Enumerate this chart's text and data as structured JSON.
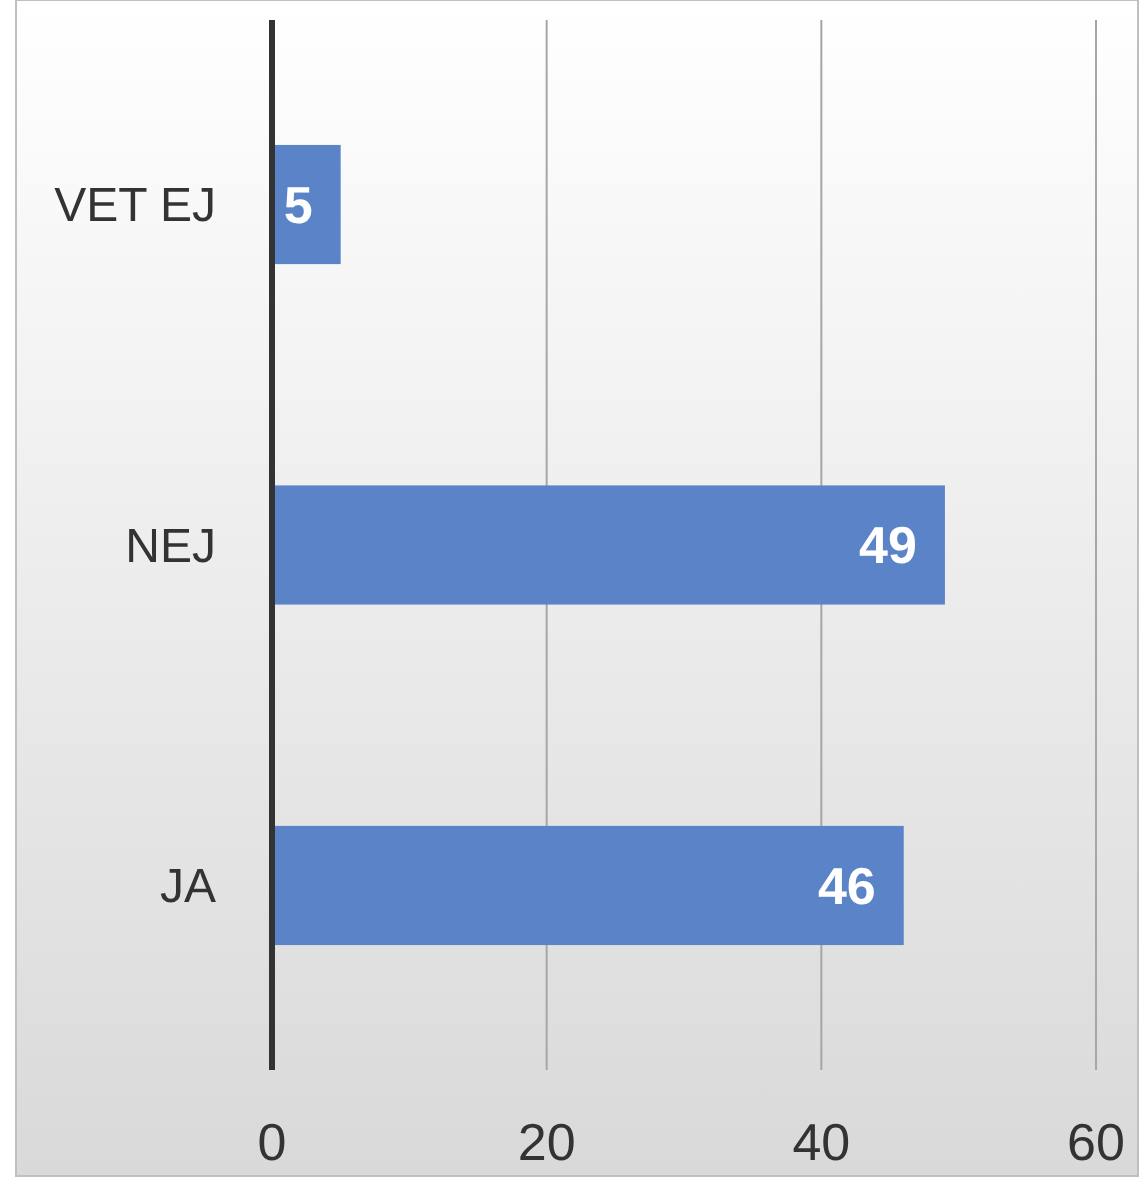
{
  "chart_data": {
    "type": "bar",
    "orientation": "horizontal",
    "categories": [
      "VET EJ",
      "NEJ",
      "JA"
    ],
    "values": [
      5,
      49,
      46
    ],
    "color": "#5b84c8",
    "xlim": [
      0,
      60
    ],
    "xticks": [
      0,
      20,
      40,
      60
    ],
    "grid": "x",
    "data_labels": true
  }
}
